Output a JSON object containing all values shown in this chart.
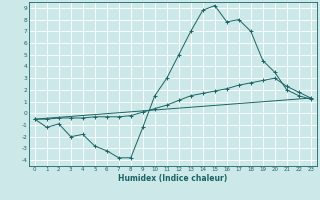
{
  "xlabel": "Humidex (Indice chaleur)",
  "background_color": "#cde8e8",
  "grid_color": "#b0d0d0",
  "line_color": "#1a6464",
  "xlim": [
    -0.5,
    23.5
  ],
  "ylim": [
    -4.5,
    9.5
  ],
  "xticks": [
    0,
    1,
    2,
    3,
    4,
    5,
    6,
    7,
    8,
    9,
    10,
    11,
    12,
    13,
    14,
    15,
    16,
    17,
    18,
    19,
    20,
    21,
    22,
    23
  ],
  "yticks": [
    -4,
    -3,
    -2,
    -1,
    0,
    1,
    2,
    3,
    4,
    5,
    6,
    7,
    8,
    9
  ],
  "series1_x": [
    0,
    1,
    2,
    3,
    4,
    5,
    6,
    7,
    8,
    9,
    10,
    11,
    12,
    13,
    14,
    15,
    16,
    17,
    18,
    19,
    20,
    21,
    22,
    23
  ],
  "series1_y": [
    -0.5,
    -1.2,
    -0.9,
    -2.0,
    -1.8,
    -2.8,
    -3.2,
    -3.8,
    -3.8,
    -1.2,
    1.5,
    3.0,
    5.0,
    7.0,
    8.8,
    9.2,
    7.8,
    8.0,
    7.0,
    4.5,
    3.5,
    2.0,
    1.5,
    1.2
  ],
  "series2_x": [
    0,
    1,
    2,
    3,
    4,
    5,
    6,
    7,
    8,
    9,
    10,
    11,
    12,
    13,
    14,
    15,
    16,
    17,
    18,
    19,
    20,
    21,
    22,
    23
  ],
  "series2_y": [
    -0.5,
    -0.5,
    -0.4,
    -0.4,
    -0.4,
    -0.3,
    -0.3,
    -0.3,
    -0.2,
    0.1,
    0.4,
    0.7,
    1.1,
    1.5,
    1.7,
    1.9,
    2.1,
    2.4,
    2.6,
    2.8,
    3.0,
    2.3,
    1.8,
    1.3
  ],
  "series3_x": [
    0,
    23
  ],
  "series3_y": [
    -0.5,
    1.3
  ],
  "figsize": [
    3.2,
    2.0
  ],
  "dpi": 100
}
